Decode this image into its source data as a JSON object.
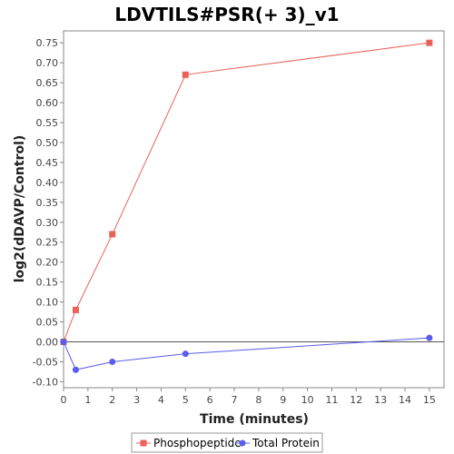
{
  "chart_data": {
    "type": "line",
    "title": "LDVTILS#PSR(+ 3)_v1",
    "xlabel": "Time (minutes)",
    "ylabel": "log2(dDAVP/Control)",
    "xlim": [
      0,
      15.6
    ],
    "ylim": [
      -0.115,
      0.78
    ],
    "x_ticks": [
      0,
      1,
      2,
      3,
      4,
      5,
      6,
      7,
      8,
      9,
      10,
      11,
      12,
      13,
      14,
      15
    ],
    "y_ticks": [
      -0.1,
      -0.05,
      0.0,
      0.05,
      0.1,
      0.15,
      0.2,
      0.25,
      0.3,
      0.35,
      0.4,
      0.45,
      0.5,
      0.55,
      0.6,
      0.65,
      0.7,
      0.75
    ],
    "zero_line": true,
    "grid": false,
    "legend_position": "bottom",
    "series": [
      {
        "name": "Phosphopeptide",
        "color": "#e8625a",
        "marker": "square",
        "x": [
          0,
          0.5,
          2,
          5,
          15
        ],
        "y": [
          0.0,
          0.08,
          0.27,
          0.67,
          0.75
        ]
      },
      {
        "name": "Total Protein",
        "color": "#5b5bec",
        "marker": "circle",
        "x": [
          0,
          0.5,
          2,
          5,
          15
        ],
        "y": [
          0.0,
          -0.07,
          -0.05,
          -0.03,
          0.01
        ]
      }
    ]
  }
}
